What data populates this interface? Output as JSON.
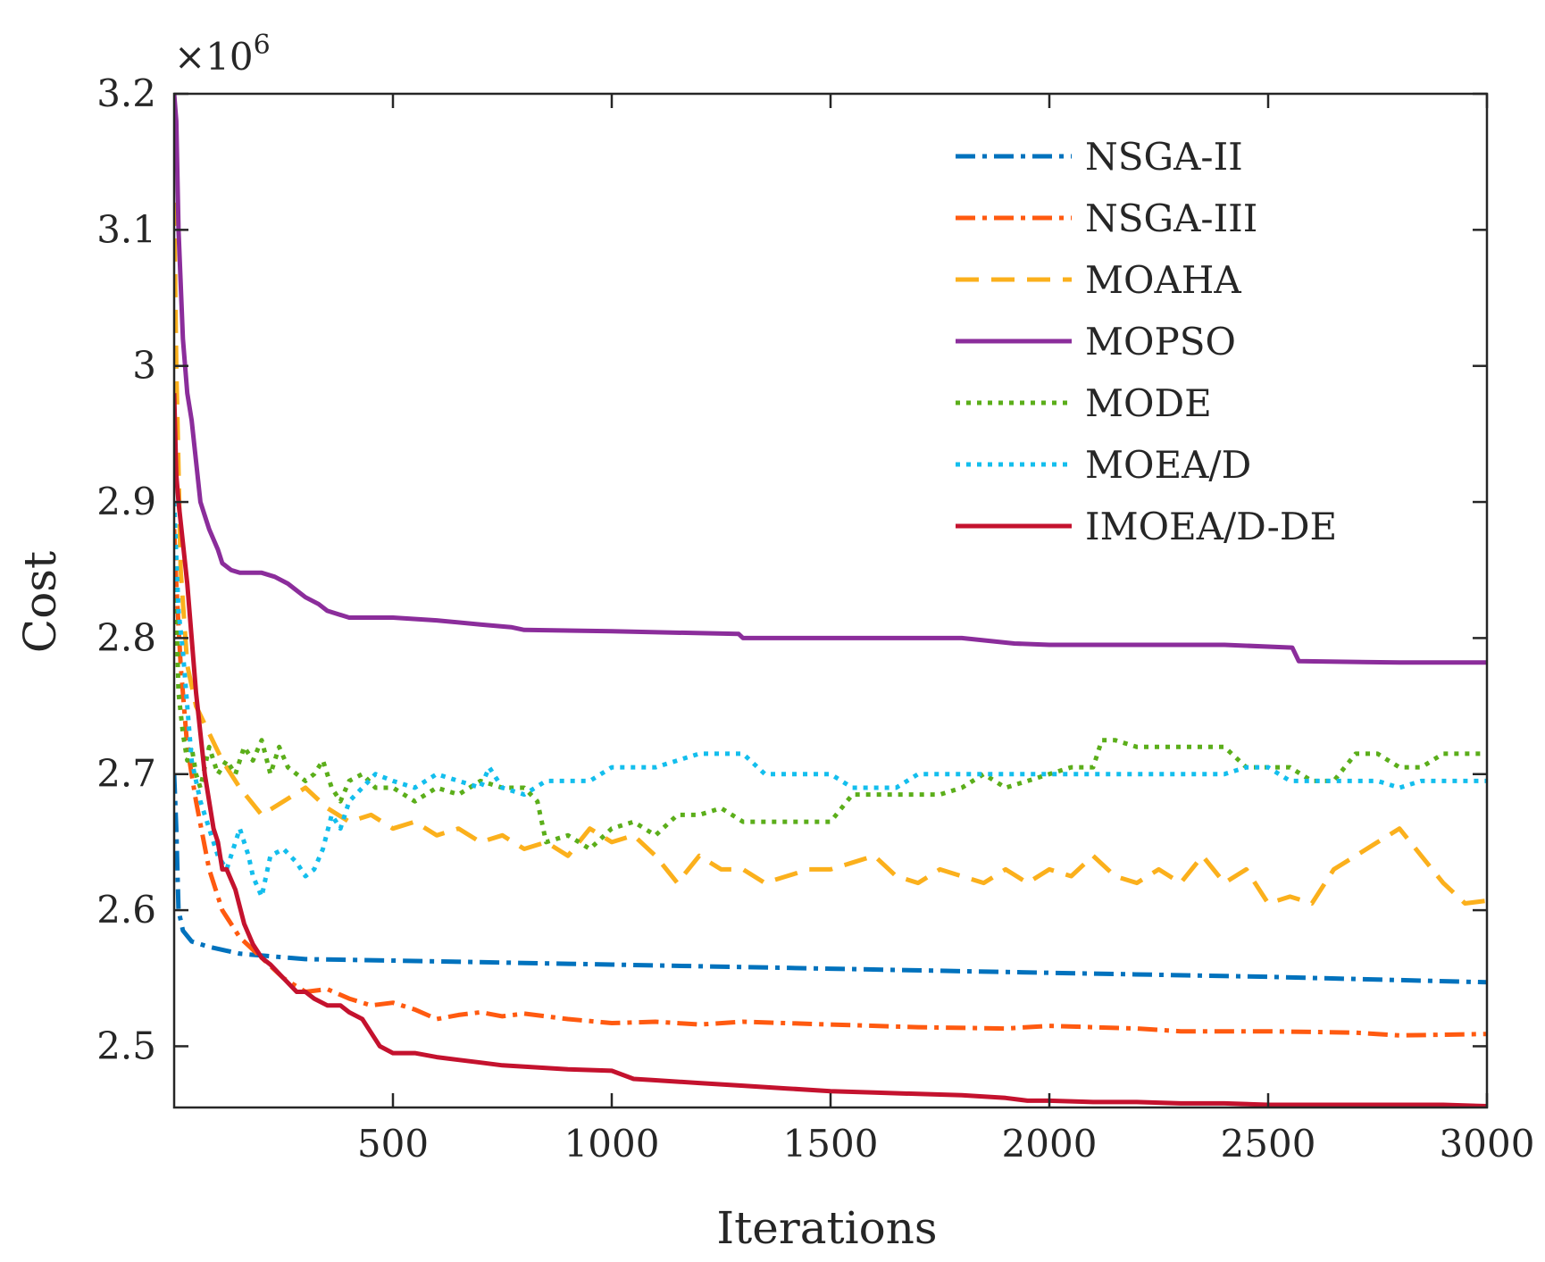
{
  "chart_data": {
    "type": "line",
    "xlabel": "Iterations",
    "ylabel": "Cost",
    "y_multiplier": "×10",
    "y_multiplier_exp": "6",
    "xlim": [
      0,
      3000
    ],
    "ylim": [
      2.455,
      3.2
    ],
    "xticks": [
      500,
      1000,
      1500,
      2000,
      2500,
      3000
    ],
    "xtick_labels": [
      "500",
      "1000",
      "1500",
      "2000",
      "2500",
      "3000"
    ],
    "yticks": [
      2.5,
      2.6,
      2.7,
      2.8,
      2.9,
      3.0,
      3.1,
      3.2
    ],
    "ytick_labels": [
      "2.5",
      "2.6",
      "2.7",
      "2.8",
      "2.9",
      "3",
      "3.1",
      "3.2"
    ],
    "legend_position": "top-right",
    "series": [
      {
        "name": "NSGA-II",
        "color": "#0072BD",
        "dash": "dashdot",
        "x": [
          0,
          5,
          10,
          20,
          40,
          80,
          150,
          300,
          500,
          1000,
          1500,
          2000,
          2500,
          3000
        ],
        "y": [
          2.7,
          2.66,
          2.6,
          2.585,
          2.577,
          2.573,
          2.568,
          2.564,
          2.563,
          2.56,
          2.557,
          2.554,
          2.551,
          2.547
        ]
      },
      {
        "name": "NSGA-III",
        "color": "#FF5A10",
        "dash": "dashdot",
        "x": [
          0,
          5,
          15,
          30,
          50,
          80,
          110,
          150,
          200,
          250,
          300,
          350,
          400,
          450,
          500,
          550,
          600,
          650,
          700,
          750,
          800,
          900,
          1000,
          1100,
          1200,
          1300,
          1500,
          1700,
          1900,
          2000,
          2200,
          2300,
          2500,
          2700,
          2800,
          3000
        ],
        "y": [
          2.88,
          2.84,
          2.78,
          2.72,
          2.68,
          2.63,
          2.6,
          2.58,
          2.565,
          2.55,
          2.54,
          2.542,
          2.535,
          2.53,
          2.532,
          2.527,
          2.52,
          2.523,
          2.525,
          2.522,
          2.524,
          2.52,
          2.517,
          2.518,
          2.516,
          2.518,
          2.516,
          2.514,
          2.513,
          2.515,
          2.513,
          2.511,
          2.511,
          2.51,
          2.508,
          2.509
        ]
      },
      {
        "name": "MOAHA",
        "color": "#FBB01C",
        "dash": "dashed",
        "x": [
          0,
          5,
          15,
          30,
          50,
          80,
          110,
          150,
          200,
          250,
          300,
          350,
          400,
          450,
          500,
          550,
          600,
          650,
          700,
          750,
          800,
          850,
          900,
          950,
          1000,
          1050,
          1100,
          1150,
          1200,
          1250,
          1300,
          1350,
          1400,
          1450,
          1500,
          1550,
          1600,
          1650,
          1700,
          1750,
          1800,
          1850,
          1900,
          1950,
          2000,
          2050,
          2100,
          2150,
          2200,
          2250,
          2300,
          2350,
          2400,
          2450,
          2500,
          2550,
          2600,
          2650,
          2700,
          2750,
          2800,
          2850,
          2900,
          2950,
          3000
        ],
        "y": [
          3.12,
          3.0,
          2.85,
          2.78,
          2.75,
          2.73,
          2.71,
          2.69,
          2.67,
          2.68,
          2.69,
          2.675,
          2.665,
          2.67,
          2.66,
          2.665,
          2.655,
          2.66,
          2.65,
          2.655,
          2.645,
          2.65,
          2.64,
          2.66,
          2.65,
          2.655,
          2.64,
          2.62,
          2.64,
          2.63,
          2.63,
          2.62,
          2.625,
          2.63,
          2.63,
          2.635,
          2.64,
          2.625,
          2.62,
          2.63,
          2.625,
          2.62,
          2.63,
          2.62,
          2.63,
          2.625,
          2.64,
          2.625,
          2.62,
          2.63,
          2.62,
          2.64,
          2.62,
          2.63,
          2.605,
          2.61,
          2.605,
          2.63,
          2.64,
          2.65,
          2.66,
          2.64,
          2.62,
          2.605,
          2.607
        ]
      },
      {
        "name": "MOPSO",
        "color": "#8B2D9B",
        "dash": "solid",
        "x": [
          0,
          5,
          10,
          20,
          30,
          40,
          50,
          60,
          70,
          80,
          100,
          110,
          130,
          150,
          200,
          230,
          260,
          280,
          300,
          330,
          350,
          400,
          500,
          600,
          700,
          770,
          800,
          1000,
          1290,
          1300,
          1500,
          1800,
          1920,
          2000,
          2200,
          2400,
          2555,
          2570,
          2800,
          3000
        ],
        "y": [
          3.2,
          3.18,
          3.1,
          3.02,
          2.98,
          2.96,
          2.93,
          2.9,
          2.89,
          2.88,
          2.865,
          2.855,
          2.85,
          2.848,
          2.848,
          2.845,
          2.84,
          2.835,
          2.83,
          2.825,
          2.82,
          2.815,
          2.815,
          2.813,
          2.81,
          2.808,
          2.806,
          2.805,
          2.803,
          2.8,
          2.8,
          2.8,
          2.796,
          2.795,
          2.795,
          2.795,
          2.793,
          2.783,
          2.782,
          2.782
        ]
      },
      {
        "name": "MODE",
        "color": "#5BAE1A",
        "dash": "dotted",
        "x": [
          0,
          5,
          10,
          20,
          30,
          40,
          50,
          60,
          80,
          100,
          120,
          140,
          160,
          180,
          200,
          220,
          240,
          260,
          300,
          320,
          340,
          360,
          380,
          400,
          430,
          460,
          500,
          550,
          600,
          650,
          700,
          750,
          800,
          830,
          850,
          900,
          950,
          1000,
          1050,
          1100,
          1150,
          1200,
          1250,
          1300,
          1350,
          1400,
          1450,
          1500,
          1550,
          1600,
          1700,
          1750,
          1800,
          1850,
          1900,
          1950,
          2000,
          2050,
          2100,
          2120,
          2150,
          2200,
          2300,
          2350,
          2400,
          2450,
          2500,
          2550,
          2600,
          2650,
          2700,
          2720,
          2750,
          2800,
          2850,
          2900,
          2950,
          3000
        ],
        "y": [
          2.9,
          2.82,
          2.76,
          2.73,
          2.71,
          2.72,
          2.7,
          2.69,
          2.72,
          2.7,
          2.71,
          2.7,
          2.72,
          2.71,
          2.725,
          2.7,
          2.72,
          2.705,
          2.695,
          2.7,
          2.71,
          2.69,
          2.68,
          2.695,
          2.7,
          2.69,
          2.69,
          2.68,
          2.69,
          2.685,
          2.695,
          2.69,
          2.69,
          2.68,
          2.65,
          2.655,
          2.645,
          2.66,
          2.665,
          2.655,
          2.67,
          2.67,
          2.675,
          2.665,
          2.665,
          2.665,
          2.665,
          2.665,
          2.685,
          2.685,
          2.685,
          2.685,
          2.69,
          2.7,
          2.69,
          2.695,
          2.7,
          2.705,
          2.705,
          2.725,
          2.725,
          2.72,
          2.72,
          2.72,
          2.72,
          2.705,
          2.705,
          2.705,
          2.695,
          2.695,
          2.715,
          2.715,
          2.715,
          2.705,
          2.705,
          2.715,
          2.715,
          2.715
        ]
      },
      {
        "name": "MOEA/D",
        "color": "#13BEED",
        "dash": "dotted",
        "x": [
          0,
          5,
          10,
          20,
          30,
          40,
          60,
          80,
          100,
          120,
          150,
          170,
          180,
          200,
          220,
          250,
          280,
          300,
          320,
          340,
          360,
          380,
          400,
          430,
          460,
          500,
          550,
          600,
          650,
          700,
          720,
          750,
          800,
          850,
          900,
          950,
          1000,
          1050,
          1100,
          1150,
          1200,
          1250,
          1300,
          1350,
          1400,
          1450,
          1500,
          1550,
          1600,
          1650,
          1700,
          1750,
          1800,
          1850,
          1900,
          1950,
          2000,
          2050,
          2100,
          2150,
          2200,
          2250,
          2300,
          2350,
          2400,
          2450,
          2500,
          2550,
          2600,
          2650,
          2700,
          2750,
          2800,
          2850,
          2900,
          2950,
          3000
        ],
        "y": [
          2.9,
          2.86,
          2.82,
          2.79,
          2.75,
          2.71,
          2.68,
          2.66,
          2.64,
          2.63,
          2.66,
          2.64,
          2.625,
          2.61,
          2.64,
          2.645,
          2.635,
          2.625,
          2.63,
          2.645,
          2.67,
          2.66,
          2.68,
          2.69,
          2.7,
          2.695,
          2.69,
          2.7,
          2.695,
          2.69,
          2.705,
          2.69,
          2.685,
          2.695,
          2.695,
          2.695,
          2.705,
          2.705,
          2.705,
          2.71,
          2.715,
          2.715,
          2.715,
          2.7,
          2.7,
          2.7,
          2.7,
          2.69,
          2.69,
          2.69,
          2.7,
          2.7,
          2.7,
          2.7,
          2.7,
          2.7,
          2.7,
          2.7,
          2.7,
          2.7,
          2.7,
          2.7,
          2.7,
          2.7,
          2.7,
          2.705,
          2.705,
          2.695,
          2.695,
          2.695,
          2.695,
          2.695,
          2.69,
          2.695,
          2.695,
          2.695,
          2.695
        ]
      },
      {
        "name": "IMOEA/D-DE",
        "color": "#C4122E",
        "dash": "solid",
        "x": [
          0,
          5,
          10,
          20,
          30,
          40,
          50,
          60,
          70,
          80,
          90,
          100,
          110,
          120,
          140,
          160,
          180,
          200,
          220,
          250,
          280,
          300,
          320,
          350,
          380,
          400,
          430,
          450,
          470,
          500,
          550,
          600,
          650,
          700,
          750,
          800,
          900,
          1000,
          1050,
          1100,
          1200,
          1300,
          1400,
          1500,
          1600,
          1700,
          1800,
          1900,
          1950,
          2000,
          2100,
          2200,
          2300,
          2400,
          2500,
          2600,
          2700,
          2800,
          2900,
          3000
        ],
        "y": [
          2.98,
          2.92,
          2.9,
          2.87,
          2.84,
          2.8,
          2.76,
          2.73,
          2.7,
          2.68,
          2.66,
          2.65,
          2.63,
          2.63,
          2.615,
          2.59,
          2.575,
          2.565,
          2.56,
          2.55,
          2.54,
          2.54,
          2.535,
          2.53,
          2.53,
          2.525,
          2.52,
          2.51,
          2.5,
          2.495,
          2.495,
          2.492,
          2.49,
          2.488,
          2.486,
          2.485,
          2.483,
          2.482,
          2.476,
          2.475,
          2.473,
          2.471,
          2.469,
          2.467,
          2.466,
          2.465,
          2.464,
          2.462,
          2.46,
          2.46,
          2.459,
          2.459,
          2.458,
          2.458,
          2.457,
          2.457,
          2.457,
          2.457,
          2.457,
          2.456
        ]
      }
    ]
  }
}
